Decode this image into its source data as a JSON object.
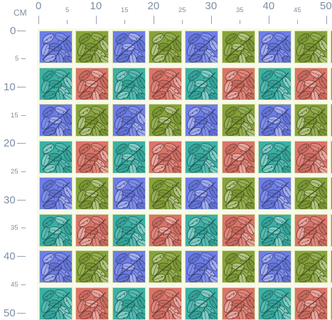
{
  "ruler": {
    "unit": "CM",
    "top_labels": [
      "0",
      "5",
      "10",
      "15",
      "20",
      "25",
      "30",
      "35",
      "40",
      "45",
      "50"
    ],
    "left_labels": [
      "0",
      "5",
      "10",
      "15",
      "20",
      "25",
      "30",
      "35",
      "40",
      "45",
      "50"
    ]
  },
  "pattern": {
    "motif": "leaf-cluster",
    "colors": {
      "blue": "#6d7ee8",
      "olive": "#86a33a",
      "teal": "#3bb1a6",
      "coral": "#db7468",
      "border": "#d8e0a8",
      "background": "#f7f9ea"
    },
    "row_types": [
      "blue-olive",
      "teal-coral"
    ]
  }
}
